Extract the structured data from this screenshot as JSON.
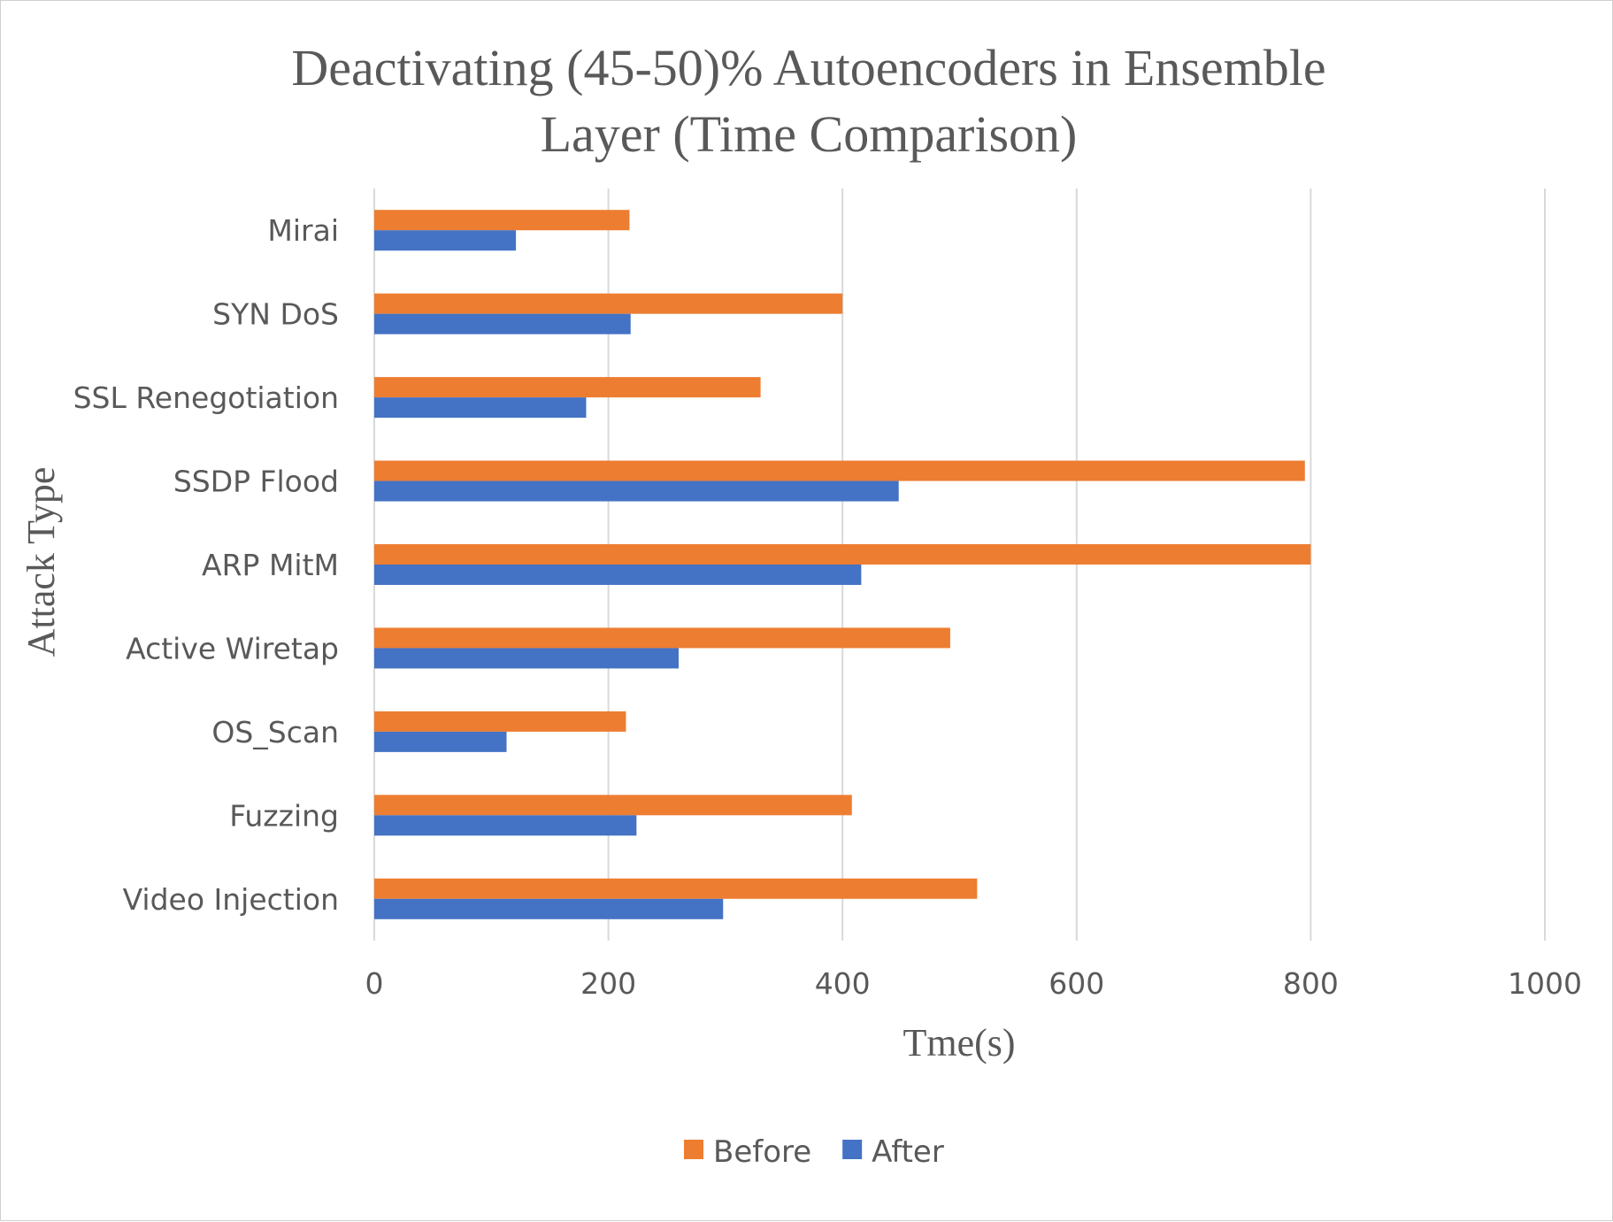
{
  "chart_data": {
    "type": "bar",
    "orientation": "horizontal",
    "title_lines": [
      "Deactivating (45-50)% Autoencoders in Ensemble",
      "Layer (Time Comparison)"
    ],
    "xlabel": "Tme(s)",
    "ylabel": "Attack Type",
    "xlim": [
      0,
      1000
    ],
    "xticks": [
      "0",
      "200",
      "400",
      "600",
      "800",
      "1000"
    ],
    "grid": "vertical",
    "legend_position": "bottom",
    "categories": [
      "Mirai",
      "SYN DoS",
      "SSL Renegotiation",
      "SSDP Flood",
      "ARP MitM",
      "Active Wiretap",
      "OS_Scan",
      "Fuzzing",
      "Video Injection"
    ],
    "series": [
      {
        "name": "Before",
        "color": "#ED7D31",
        "values": [
          218,
          400,
          330,
          795,
          800,
          492,
          215,
          408,
          515
        ]
      },
      {
        "name": "After",
        "color": "#4472C4",
        "values": [
          121,
          219,
          181,
          448,
          416,
          260,
          113,
          224,
          298
        ]
      }
    ]
  }
}
